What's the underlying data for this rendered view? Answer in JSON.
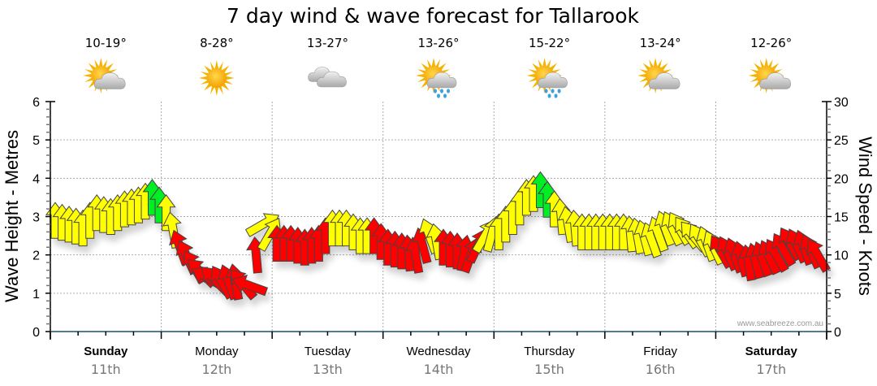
{
  "chart_data": {
    "type": "scatter",
    "title": "7 day wind & wave forecast for Tallarook",
    "ylabel_left": "Wave Height - Metres",
    "ylabel_right": "Wind Speed - Knots",
    "ylim_left": [
      0,
      6
    ],
    "ylim_right": [
      0,
      30
    ],
    "yticks_left": [
      "0",
      "1",
      "2",
      "3",
      "4",
      "5",
      "6"
    ],
    "yticks_right": [
      "0",
      "5",
      "10",
      "15",
      "20",
      "25",
      "30"
    ],
    "grid": true,
    "watermark": "www.seabreeze.com.au",
    "colors": {
      "light": "#ffff00",
      "moderate": "#ff0000",
      "strong": "#00ee22",
      "axis": "#1a4f6e",
      "grid": "#aaaaaa"
    },
    "days": [
      {
        "name": "Sunday",
        "date": "11th",
        "bold": true,
        "temp": "10-19°",
        "icon": "partly-cloudy-icon"
      },
      {
        "name": "Monday",
        "date": "12th",
        "bold": false,
        "temp": "8-28°",
        "icon": "sunny-icon"
      },
      {
        "name": "Tuesday",
        "date": "13th",
        "bold": false,
        "temp": "13-27°",
        "icon": "cloudy-icon"
      },
      {
        "name": "Wednesday",
        "date": "14th",
        "bold": false,
        "temp": "13-26°",
        "icon": "showers-icon"
      },
      {
        "name": "Thursday",
        "date": "15th",
        "bold": false,
        "temp": "15-22°",
        "icon": "showers-icon"
      },
      {
        "name": "Friday",
        "date": "16th",
        "bold": false,
        "temp": "13-24°",
        "icon": "partly-cloudy-icon"
      },
      {
        "name": "Saturday",
        "date": "17th",
        "bold": true,
        "temp": "12-26°",
        "icon": "partly-cloudy-icon"
      }
    ],
    "wind_series": {
      "name": "Wind",
      "x_hours": [
        0,
        3,
        6,
        9,
        12,
        15,
        18,
        21,
        24,
        27,
        30,
        33,
        36,
        39,
        42,
        45,
        48,
        51,
        54,
        57,
        60,
        63,
        66,
        69,
        72,
        75,
        78,
        81,
        84,
        87,
        90,
        93,
        96,
        99,
        102,
        105,
        108,
        111,
        114,
        117,
        120,
        123,
        126,
        129,
        132,
        135,
        138,
        141,
        144,
        147,
        150,
        153,
        156,
        159,
        162,
        165
      ],
      "knots": [
        14.5,
        14,
        13.5,
        15.5,
        15,
        16,
        16.5,
        17.5,
        15.5,
        11,
        8.5,
        7,
        6.5,
        6.5,
        6,
        14,
        11.5,
        11.5,
        11,
        11.5,
        13.5,
        13.5,
        12.5,
        12.5,
        11,
        10.5,
        10,
        12.5,
        11,
        10.5,
        10,
        12.5,
        13,
        15,
        17.5,
        18.5,
        16,
        14,
        13,
        13,
        13,
        13,
        12.5,
        12,
        13.5,
        13.5,
        12.5,
        11.5,
        10.5,
        10,
        9,
        9.5,
        10,
        11.5,
        11,
        10
      ],
      "rotation_deg": [
        0,
        0,
        0,
        0,
        0,
        0,
        0,
        0,
        0,
        -20,
        -30,
        -60,
        -30,
        -10,
        -70,
        60,
        0,
        0,
        0,
        0,
        0,
        0,
        0,
        0,
        0,
        0,
        -10,
        -20,
        0,
        0,
        20,
        30,
        0,
        0,
        0,
        0,
        0,
        -10,
        0,
        0,
        0,
        0,
        -10,
        -20,
        -20,
        -30,
        -40,
        -20,
        -30,
        -20,
        -10,
        -20,
        -30,
        -30,
        -20,
        -30
      ],
      "category": [
        "light",
        "light",
        "light",
        "light",
        "light",
        "light",
        "light",
        "strong",
        "light",
        "moderate",
        "moderate",
        "moderate",
        "moderate",
        "moderate",
        "moderate",
        "light",
        "moderate",
        "moderate",
        "moderate",
        "moderate",
        "light",
        "light",
        "light",
        "moderate",
        "moderate",
        "moderate",
        "moderate",
        "light",
        "moderate",
        "moderate",
        "moderate",
        "light",
        "light",
        "light",
        "light",
        "strong",
        "light",
        "light",
        "light",
        "light",
        "light",
        "light",
        "light",
        "light",
        "light",
        "light",
        "light",
        "light",
        "moderate",
        "moderate",
        "moderate",
        "moderate",
        "moderate",
        "moderate",
        "moderate",
        "moderate"
      ]
    }
  }
}
